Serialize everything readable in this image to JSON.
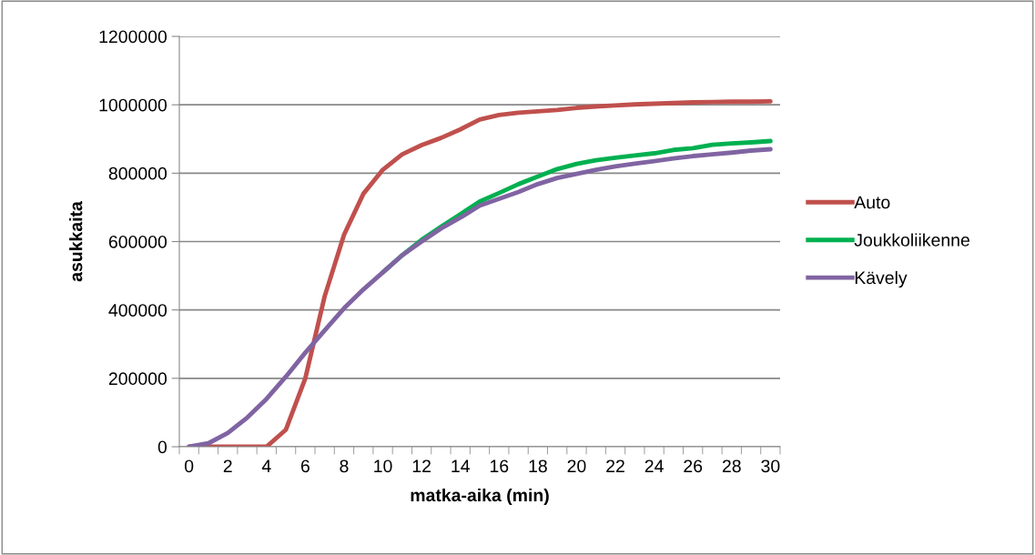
{
  "chart_data": {
    "type": "line",
    "xlabel": "matka-aika (min)",
    "ylabel": "asukkaita",
    "categories": [
      "0",
      null,
      "2",
      null,
      "4",
      null,
      "6",
      null,
      "8",
      null,
      "10",
      null,
      "12",
      null,
      "14",
      null,
      "16",
      null,
      "18",
      null,
      "20",
      null,
      "22",
      null,
      "24",
      null,
      "26",
      null,
      "28",
      null,
      "30"
    ],
    "series": [
      {
        "name": "Auto",
        "color": "#c0504d",
        "values": [
          0,
          0,
          0,
          0,
          0,
          50000,
          200000,
          440000,
          620000,
          740000,
          810000,
          855000,
          882000,
          903000,
          928000,
          957000,
          970000,
          977000,
          981000,
          985000,
          991000,
          995000,
          998000,
          1001000,
          1003000,
          1005000,
          1007000,
          1008000,
          1009000,
          1009000,
          1010000
        ]
      },
      {
        "name": "Joukkoliikenne",
        "color": "#00b050",
        "values": [
          null,
          null,
          null,
          null,
          null,
          null,
          null,
          null,
          null,
          null,
          510000,
          560000,
          605000,
          643000,
          680000,
          717000,
          742000,
          768000,
          790000,
          812000,
          827000,
          838000,
          845000,
          852000,
          858000,
          868000,
          873000,
          883000,
          887000,
          890000,
          894000
        ]
      },
      {
        "name": "Kävely",
        "color": "#8064a2",
        "values": [
          0,
          10000,
          40000,
          85000,
          140000,
          205000,
          275000,
          340000,
          405000,
          460000,
          510000,
          560000,
          600000,
          638000,
          670000,
          705000,
          725000,
          745000,
          768000,
          786000,
          798000,
          810000,
          820000,
          828000,
          835000,
          843000,
          850000,
          855000,
          860000,
          866000,
          870000
        ]
      }
    ],
    "ylim": [
      0,
      1200000
    ],
    "yticks": [
      0,
      200000,
      400000,
      600000,
      800000,
      1000000,
      1200000
    ],
    "grid": "y",
    "legend": "right",
    "marker": "none",
    "line_style": "solid"
  }
}
